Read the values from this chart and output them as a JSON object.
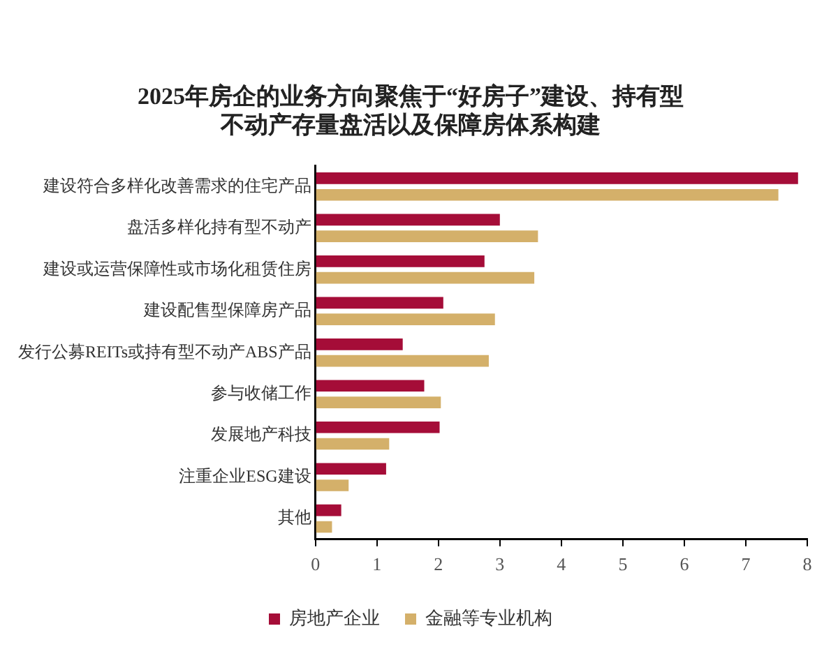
{
  "chart_data": {
    "type": "bar",
    "orientation": "horizontal",
    "title": "2025年房企的业务方向聚焦于“好房子”建设、持有型不动产存量盘活以及保障房体系构建",
    "categories": [
      "建设符合多样化改善需求的住宅产品",
      "盘活多样化持有型不动产",
      "建设或运营保障性或市场化租赁住房",
      "建设配售型保障房产品",
      "发行公募REITs或持有型不动产ABS产品",
      "参与收储工作",
      "发展地产科技",
      "注重企业ESG建设",
      "其他"
    ],
    "series": [
      {
        "name": "房地产企业",
        "color": "#a50d38",
        "values": [
          7.85,
          3.0,
          2.75,
          2.08,
          1.42,
          1.77,
          2.02,
          1.15,
          0.42
        ]
      },
      {
        "name": "金融等专业机构",
        "color": "#d4b06a",
        "values": [
          7.53,
          3.62,
          3.56,
          2.92,
          2.82,
          2.04,
          1.2,
          0.54,
          0.27
        ]
      }
    ],
    "xlim": [
      0,
      8
    ],
    "xticks": [
      0,
      1,
      2,
      3,
      4,
      5,
      6,
      7,
      8
    ],
    "grid": false,
    "legend": "bottom"
  }
}
